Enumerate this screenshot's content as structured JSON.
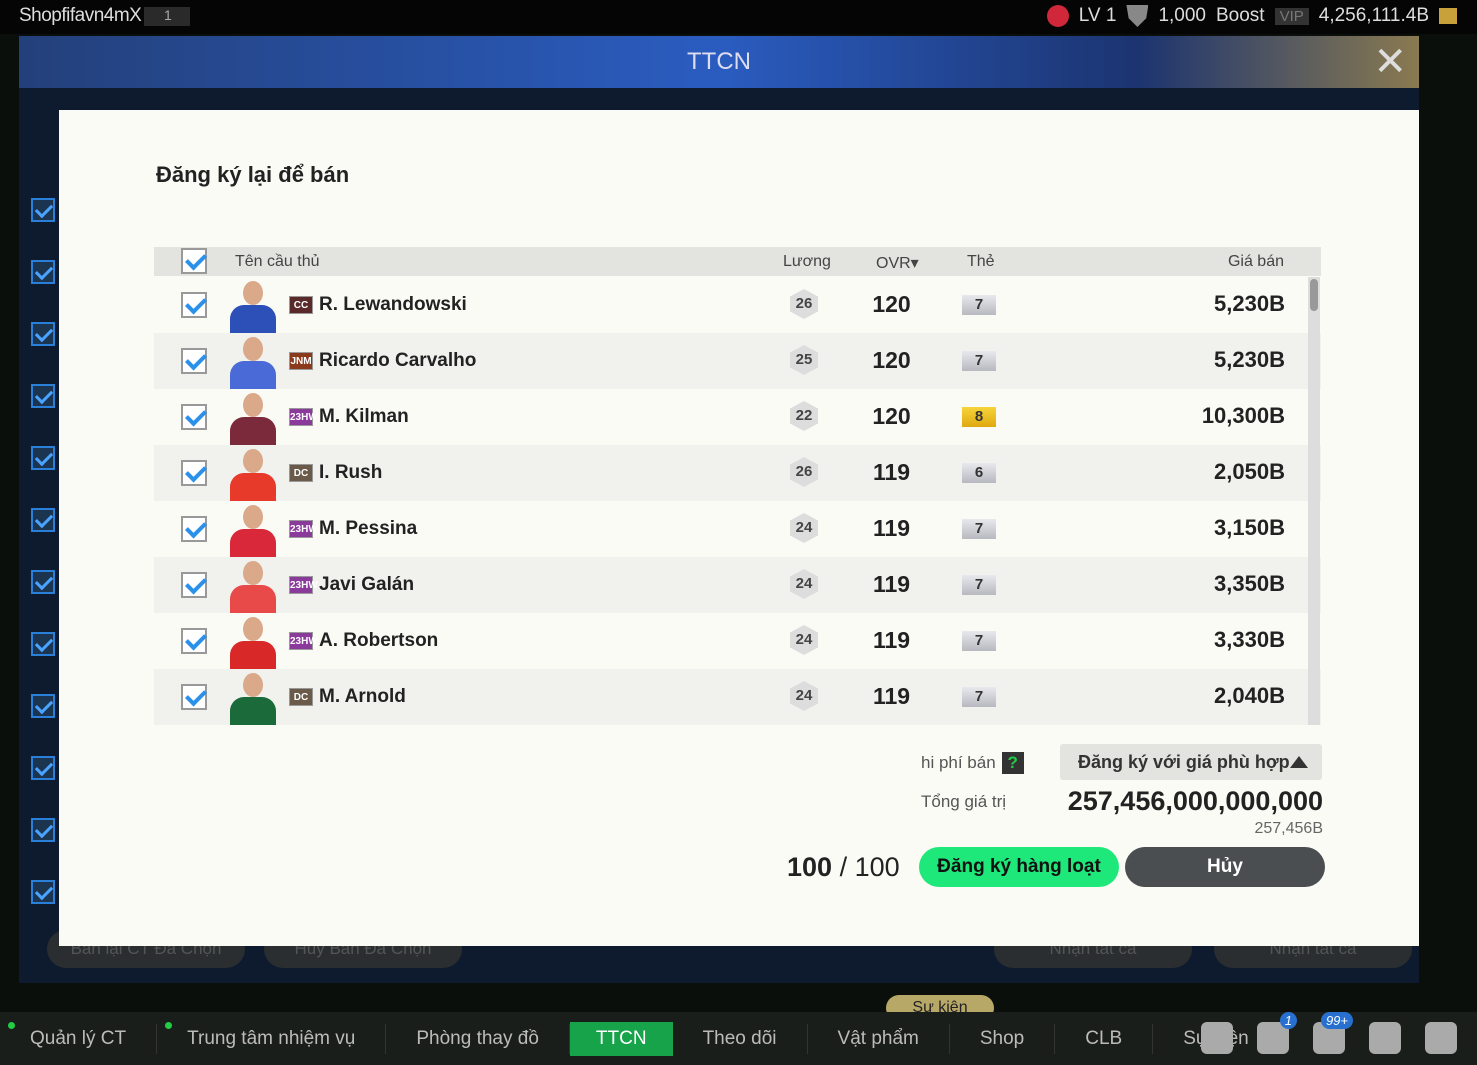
{
  "topbar": {
    "username": "Shopfifavn4mX",
    "server": "1",
    "level": "LV 1",
    "points": "1,000",
    "boost": "Boost",
    "vip": "VIP",
    "balance": "4,256,111.4B"
  },
  "header": {
    "title": "TTCN"
  },
  "background": {
    "btn_resell": "Bán lại CT Đã Chọn",
    "btn_cancel_sale": "Hủy Bán Đã Chọn",
    "btn_claim1": "Nhận tất cả",
    "btn_claim2": "Nhận tất cả"
  },
  "modal": {
    "title": "Đăng ký lại để bán",
    "columns": {
      "name": "Tên cầu thủ",
      "salary": "Lương",
      "ovr": "OVR▾",
      "card": "Thẻ",
      "price": "Giá bán"
    },
    "players": [
      {
        "season": "CC",
        "name": "R. Lewandowski",
        "salary": "26",
        "ovr": "120",
        "card": "7",
        "price": "5,230B",
        "season_color": "#5a2a2a",
        "kit": "#2d4fb8"
      },
      {
        "season": "JNM",
        "name": "Ricardo Carvalho",
        "salary": "25",
        "ovr": "120",
        "card": "7",
        "price": "5,230B",
        "season_color": "#8a3a1a",
        "kit": "#4a6ad8"
      },
      {
        "season": "23HW",
        "name": "M. Kilman",
        "salary": "22",
        "ovr": "120",
        "card": "8",
        "price": "10,300B",
        "season_color": "#8a3a9a",
        "kit": "#7a2a3a"
      },
      {
        "season": "DC",
        "name": "I. Rush",
        "salary": "26",
        "ovr": "119",
        "card": "6",
        "price": "2,050B",
        "season_color": "#6a5a4a",
        "kit": "#e83a2a"
      },
      {
        "season": "23HW",
        "name": "M. Pessina",
        "salary": "24",
        "ovr": "119",
        "card": "7",
        "price": "3,150B",
        "season_color": "#8a3a9a",
        "kit": "#d8283a"
      },
      {
        "season": "23HW",
        "name": "Javi Galán",
        "salary": "24",
        "ovr": "119",
        "card": "7",
        "price": "3,350B",
        "season_color": "#8a3a9a",
        "kit": "#e84a4a"
      },
      {
        "season": "23HW",
        "name": "A. Robertson",
        "salary": "24",
        "ovr": "119",
        "card": "7",
        "price": "3,330B",
        "season_color": "#8a3a9a",
        "kit": "#d82828"
      },
      {
        "season": "DC",
        "name": "M. Arnold",
        "salary": "24",
        "ovr": "119",
        "card": "7",
        "price": "2,040B",
        "season_color": "#6a5a4a",
        "kit": "#1a6a3a"
      }
    ],
    "fee_label": "hi phí bán",
    "fee_help": "?",
    "price_mode": "Đăng ký với giá phù hợp",
    "total_label": "Tổng giá trị",
    "total_value": "257,456,000,000,000",
    "total_short": "257,456B",
    "count_selected": "100",
    "count_sep": " / ",
    "count_total": "100",
    "register_button": "Đăng ký hàng loạt",
    "cancel_button": "Hủy"
  },
  "nav": {
    "items": [
      "Quản lý CT",
      "Trung tâm nhiệm vụ",
      "Phòng thay đồ",
      "TTCN",
      "Theo dõi",
      "Vật phẩm",
      "Shop",
      "CLB",
      "Sự kiện"
    ],
    "active": "TTCN",
    "event_tag": "Sự kiện",
    "mail_badge": "1",
    "notif_badge": "99+"
  },
  "colors": {
    "accent_green": "#1ee87a",
    "check_blue": "#2a90e8",
    "nav_active": "#17a34a"
  }
}
